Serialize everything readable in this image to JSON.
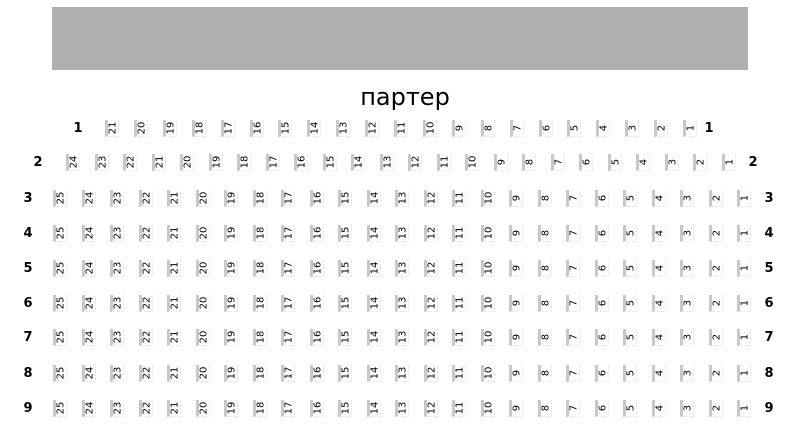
{
  "hall_title": "партер",
  "screen_color": "#b0afb1",
  "rows": [
    {
      "label": "1",
      "seats": [
        "21",
        "20",
        "19",
        "18",
        "17",
        "16",
        "15",
        "14",
        "13",
        "12",
        "11",
        "10",
        "9",
        "8",
        "7",
        "6",
        "5",
        "4",
        "3",
        "2",
        "1"
      ]
    },
    {
      "label": "2",
      "seats": [
        "24",
        "23",
        "22",
        "21",
        "20",
        "19",
        "18",
        "17",
        "16",
        "15",
        "14",
        "13",
        "12",
        "11",
        "10",
        "9",
        "8",
        "7",
        "6",
        "5",
        "4",
        "3",
        "2",
        "1"
      ]
    },
    {
      "label": "3",
      "seats": [
        "25",
        "24",
        "23",
        "22",
        "21",
        "20",
        "19",
        "18",
        "17",
        "16",
        "15",
        "14",
        "13",
        "12",
        "11",
        "10",
        "9",
        "8",
        "7",
        "6",
        "5",
        "4",
        "3",
        "2",
        "1"
      ]
    },
    {
      "label": "4",
      "seats": [
        "25",
        "24",
        "23",
        "22",
        "21",
        "20",
        "19",
        "18",
        "17",
        "16",
        "15",
        "14",
        "13",
        "12",
        "11",
        "10",
        "9",
        "8",
        "7",
        "6",
        "5",
        "4",
        "3",
        "2",
        "1"
      ]
    },
    {
      "label": "5",
      "seats": [
        "25",
        "24",
        "23",
        "22",
        "21",
        "20",
        "19",
        "18",
        "17",
        "16",
        "15",
        "14",
        "13",
        "12",
        "11",
        "10",
        "9",
        "8",
        "7",
        "6",
        "5",
        "4",
        "3",
        "2",
        "1"
      ]
    },
    {
      "label": "6",
      "seats": [
        "25",
        "24",
        "23",
        "22",
        "21",
        "20",
        "19",
        "18",
        "17",
        "16",
        "15",
        "14",
        "13",
        "12",
        "11",
        "10",
        "9",
        "8",
        "7",
        "6",
        "5",
        "4",
        "3",
        "2",
        "1"
      ]
    },
    {
      "label": "7",
      "seats": [
        "25",
        "24",
        "23",
        "22",
        "21",
        "20",
        "19",
        "18",
        "17",
        "16",
        "15",
        "14",
        "13",
        "12",
        "11",
        "10",
        "9",
        "8",
        "7",
        "6",
        "5",
        "4",
        "3",
        "2",
        "1"
      ]
    },
    {
      "label": "8",
      "seats": [
        "25",
        "24",
        "23",
        "22",
        "21",
        "20",
        "19",
        "18",
        "17",
        "16",
        "15",
        "14",
        "13",
        "12",
        "11",
        "10",
        "9",
        "8",
        "7",
        "6",
        "5",
        "4",
        "3",
        "2",
        "1"
      ]
    },
    {
      "label": "9",
      "seats": [
        "25",
        "24",
        "23",
        "22",
        "21",
        "20",
        "19",
        "18",
        "17",
        "16",
        "15",
        "14",
        "13",
        "12",
        "11",
        "10",
        "9",
        "8",
        "7",
        "6",
        "5",
        "4",
        "3",
        "2",
        "1"
      ]
    }
  ]
}
